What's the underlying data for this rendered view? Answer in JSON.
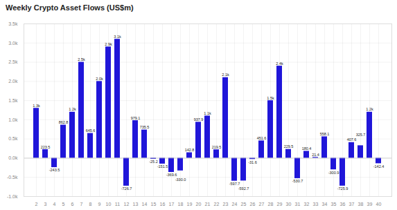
{
  "chart_data": {
    "type": "bar",
    "title": "Weekly Crypto Asset Flows (US$m)",
    "categories": [
      "2",
      "3",
      "4",
      "5",
      "6",
      "7",
      "8",
      "9",
      "10",
      "11",
      "12",
      "13",
      "14",
      "15",
      "16",
      "17",
      "18",
      "19",
      "20",
      "21",
      "22",
      "23",
      "24",
      "25",
      "26",
      "27",
      "28",
      "29",
      "30",
      "31",
      "32",
      "33",
      "34",
      "35",
      "36",
      "37",
      "38",
      "39",
      "40"
    ],
    "values": [
      1300,
      223.5,
      -243.5,
      862.8,
      1200,
      2500,
      645.6,
      2000,
      2900,
      3100,
      -726.7,
      979.1,
      735.5,
      -25.2,
      -151.5,
      -369.6,
      -330.0,
      142.8,
      937.9,
      1100,
      219.5,
      2100,
      -597.7,
      -592.7,
      -31.6,
      451.6,
      1500,
      2400,
      229.5,
      -530.7,
      180.4,
      21.4,
      558.1,
      -300.9,
      -725.9,
      407.6,
      325.7,
      1200,
      -142.4
    ],
    "value_labels": [
      "1.3k",
      "223.5",
      "-243.5",
      "862.8",
      "1.2k",
      "2.5k",
      "645.6",
      "2.0k",
      "2.9k",
      "3.1k",
      "-726.7",
      "979.1",
      "735.5",
      "-25.2",
      "-151.5",
      "-369.6",
      "-330.0",
      "142.8",
      "937.9",
      "1.1k",
      "219.5",
      "2.1k",
      "-597.7",
      "-592.7",
      "-31.6",
      "451.6",
      "1.5k",
      "2.4k",
      "229.5",
      "-530.7",
      "180.4",
      "21.4",
      "558.1",
      "-300.9",
      "-725.9",
      "407.6",
      "325.7",
      "1.2k",
      "-142.4"
    ],
    "color": "#2016d9",
    "ylim": [
      -1000,
      3500
    ],
    "yticks": [
      {
        "value": -1000,
        "label": "-1.0k"
      },
      {
        "value": -500,
        "label": "-0.5k"
      },
      {
        "value": 0,
        "label": "0.0k"
      },
      {
        "value": 500,
        "label": "0.5k"
      },
      {
        "value": 1000,
        "label": "1.0k"
      },
      {
        "value": 1500,
        "label": "1.5k"
      },
      {
        "value": 2000,
        "label": "2.0k"
      },
      {
        "value": 2500,
        "label": "2.5k"
      },
      {
        "value": 3000,
        "label": "3.0k"
      },
      {
        "value": 3500,
        "label": "3.5k"
      }
    ],
    "grid": true,
    "data_labels": true
  }
}
